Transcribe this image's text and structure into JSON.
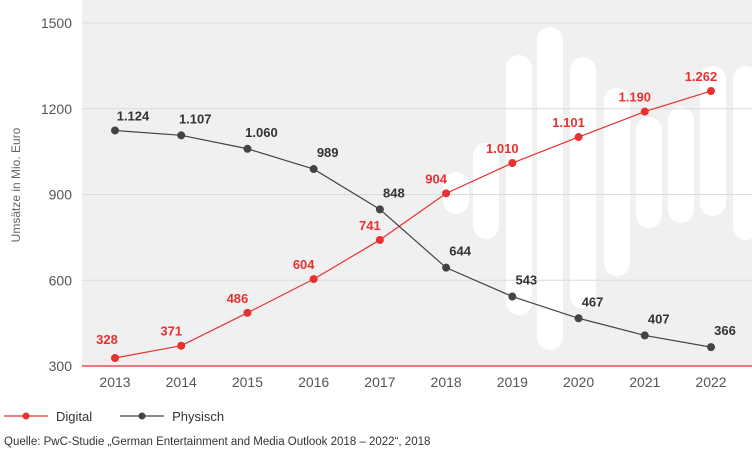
{
  "chart_data": {
    "type": "line",
    "x": [
      "2013",
      "2014",
      "2015",
      "2016",
      "2017",
      "2018",
      "2019",
      "2020",
      "2021",
      "2022"
    ],
    "series": [
      {
        "name": "Digital",
        "color": "#e8312f",
        "values": [
          328,
          371,
          486,
          604,
          741,
          904,
          1010,
          1101,
          1190,
          1262
        ],
        "labels": [
          "328",
          "371",
          "486",
          "604",
          "741",
          "904",
          "1.010",
          "1.101",
          "1.190",
          "1.262"
        ]
      },
      {
        "name": "Physisch",
        "color": "#444444",
        "values": [
          1124,
          1107,
          1060,
          989,
          848,
          644,
          543,
          467,
          407,
          366
        ],
        "labels": [
          "1.124",
          "1.107",
          "1.060",
          "989",
          "848",
          "644",
          "543",
          "467",
          "407",
          "366"
        ]
      }
    ],
    "ylabel": "Umsätze in Mio. Euro",
    "ylim": [
      300,
      1500
    ],
    "yticks": [
      300,
      600,
      900,
      1200,
      1500
    ],
    "ytick_labels": [
      "300",
      "600",
      "900",
      "1200",
      "1500"
    ],
    "grid": true,
    "legend_position": "bottom-left",
    "source": "Quelle: PwC-Studie „German Entertainment and Media Outlook 2018 – 2022“, 2018"
  }
}
